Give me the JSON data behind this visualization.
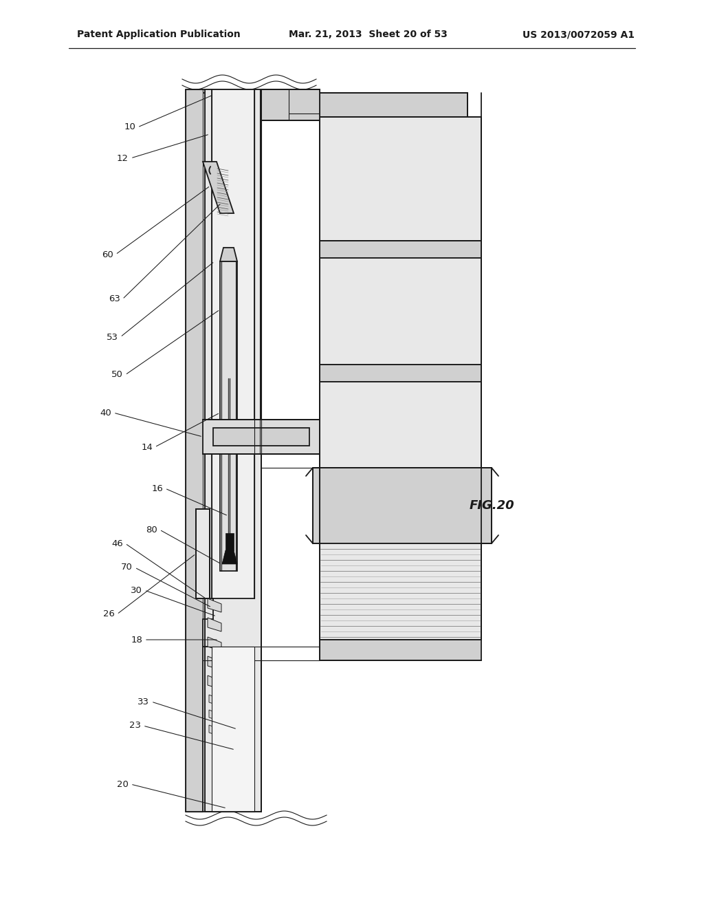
{
  "bg_color": "#ffffff",
  "header_left": "Patent Application Publication",
  "header_mid": "Mar. 21, 2013  Sheet 20 of 53",
  "header_right": "US 2013/0072059 A1",
  "figure_label": "FIG.20",
  "line_color": "#1a1a1a",
  "gray_light": "#e8e8e8",
  "gray_mid": "#d0d0d0",
  "gray_dark": "#b0b0b0"
}
